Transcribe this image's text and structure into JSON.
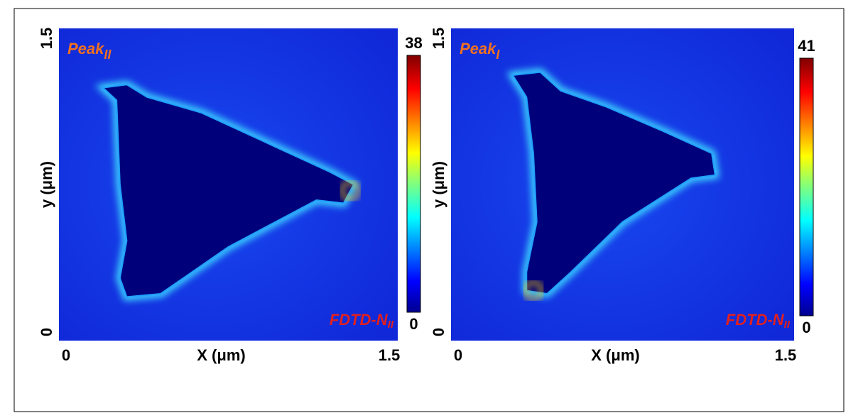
{
  "chart_data": [
    {
      "type": "heatmap",
      "title": "Peak",
      "title_sub": "II",
      "annotation": "FDTD-N",
      "annotation_sub": "II",
      "x_label": "X (μm)",
      "y_label": "y (μm)",
      "xlim": [
        0,
        1.5
      ],
      "ylim": [
        0,
        1.5
      ],
      "xticks": [
        0,
        1.5
      ],
      "yticks": [
        0,
        1.5
      ],
      "clim": [
        0,
        38
      ],
      "cticks": [
        0,
        38
      ]
    },
    {
      "type": "heatmap",
      "title": "Peak",
      "title_sub": "I",
      "annotation": "FDTD-N",
      "annotation_sub": "II",
      "x_label": "X (μm)",
      "y_label": "y (μm)",
      "xlim": [
        0,
        1.5
      ],
      "ylim": [
        0,
        1.5
      ],
      "xticks": [
        0,
        1.5
      ],
      "yticks": [
        0,
        1.5
      ],
      "clim": [
        0,
        41
      ],
      "cticks": [
        0,
        41
      ]
    }
  ]
}
